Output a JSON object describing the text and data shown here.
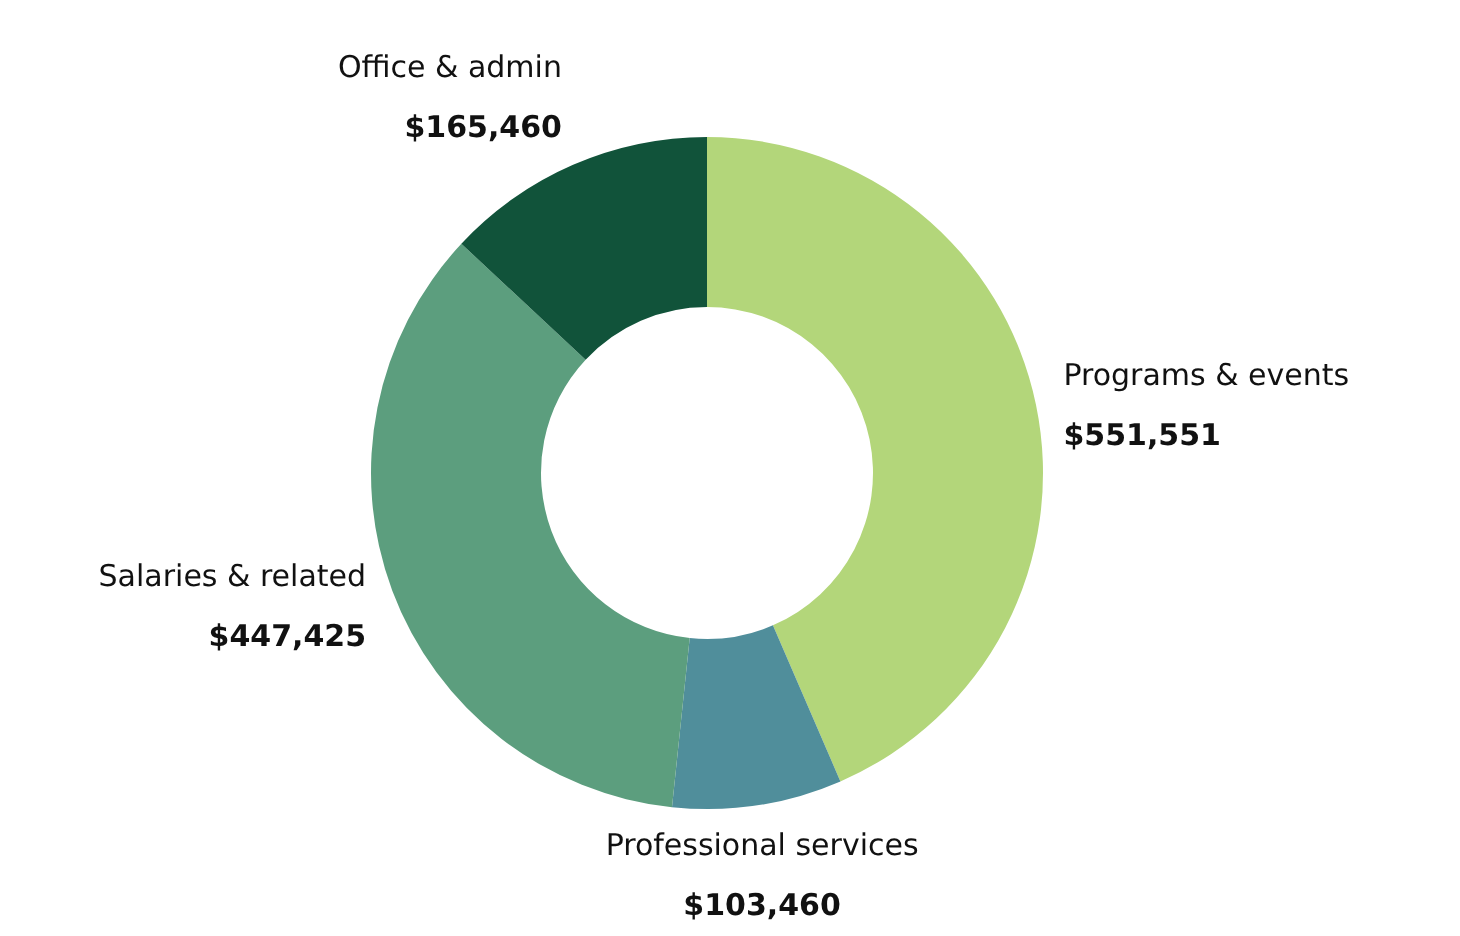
{
  "chart_data": {
    "type": "donut",
    "categories": [
      "Programs & events",
      "Professional services",
      "Salaries & related",
      "Office & admin"
    ],
    "values": [
      551551,
      103460,
      447425,
      165460
    ],
    "value_labels": [
      "$551,551",
      "$103,460",
      "$447,425",
      "$165,460"
    ],
    "colors": [
      "#b3d67a",
      "#508e9b",
      "#5c9e7e",
      "#11533a"
    ]
  }
}
